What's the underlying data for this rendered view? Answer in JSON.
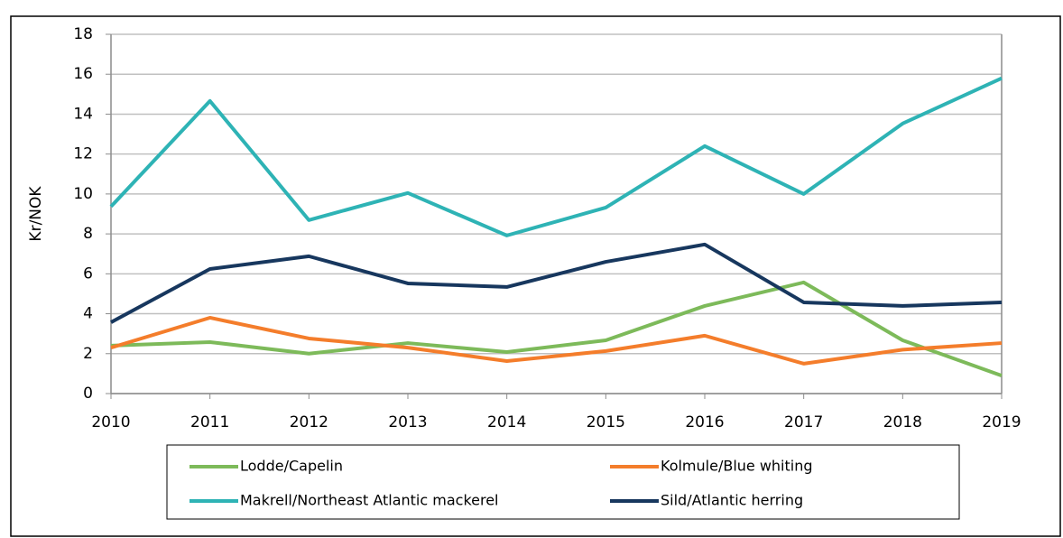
{
  "chart_data": {
    "type": "line",
    "y_label": "Kr/NOK",
    "categories": [
      "2010",
      "2011",
      "2012",
      "2013",
      "2014",
      "2015",
      "2016",
      "2017",
      "2018",
      "2019"
    ],
    "series": [
      {
        "name": "Lodde/Capelin",
        "color": "#7dba5a",
        "values": [
          2.4,
          2.58,
          2.0,
          2.53,
          2.08,
          2.67,
          4.39,
          5.57,
          2.67,
          0.9
        ]
      },
      {
        "name": "Kolmule/Blue whiting",
        "color": "#f47d2b",
        "values": [
          2.3,
          3.8,
          2.76,
          2.3,
          1.63,
          2.13,
          2.9,
          1.5,
          2.2,
          2.53
        ]
      },
      {
        "name": "Makrell/Northeast Atlantic mackerel",
        "color": "#2eb3b5",
        "values": [
          9.37,
          14.66,
          8.69,
          10.05,
          7.92,
          9.32,
          12.4,
          10.0,
          13.53,
          15.8
        ]
      },
      {
        "name": "Sild/Atlantic herring",
        "color": "#17375e",
        "values": [
          3.57,
          6.24,
          6.88,
          5.52,
          5.34,
          6.6,
          7.47,
          4.57,
          4.39,
          4.57
        ]
      }
    ],
    "ylim": [
      0,
      18
    ],
    "yticks": [
      0,
      2,
      4,
      6,
      8,
      10,
      12,
      14,
      16,
      18
    ],
    "grid": true,
    "legend": "bottom"
  }
}
